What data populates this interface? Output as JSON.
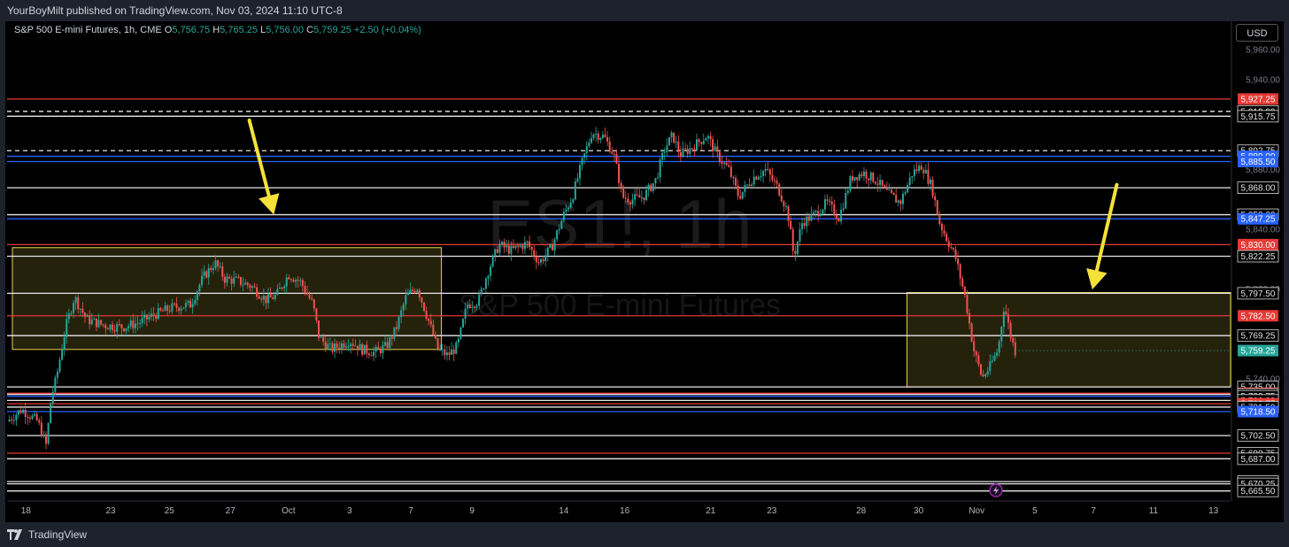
{
  "header": {
    "publish_text": "YourBoyMilt published on TradingView.com, Nov 03, 2024 11:10 UTC-8"
  },
  "legend": {
    "symbol": "S&P 500 E-mini Futures, 1h, CME",
    "open_label": "O",
    "open": "5,756.75",
    "high_label": "H",
    "high": "5,765.25",
    "low_label": "L",
    "low": "5,756.00",
    "close_label": "C",
    "close": "5,759.25",
    "change": "+2.50 (+0.04%)"
  },
  "currency_button": "USD",
  "watermark": {
    "symbol": "ES1!, 1h",
    "name": "S&P 500 E-mini Futures"
  },
  "footer": {
    "brand": "TradingView"
  },
  "colors": {
    "up": "#26a69a",
    "down": "#ef5350",
    "red_line": "#e53935",
    "blue_line": "#2962ff",
    "arrow": "#f5e13a",
    "zone": "#e8d64a"
  },
  "chart_data": {
    "type": "candlestick",
    "title": "S&P 500 E-mini Futures, 1h, CME",
    "y_range": [
      5660,
      5965
    ],
    "x_ticks": [
      {
        "label": "18",
        "pos": 0.0154
      },
      {
        "label": "23",
        "pos": 0.0847
      },
      {
        "label": "25",
        "pos": 0.1326
      },
      {
        "label": "27",
        "pos": 0.1825
      },
      {
        "label": "Oct",
        "pos": 0.23
      },
      {
        "label": "3",
        "pos": 0.28
      },
      {
        "label": "7",
        "pos": 0.33
      },
      {
        "label": "9",
        "pos": 0.38
      },
      {
        "label": "14",
        "pos": 0.455
      },
      {
        "label": "16",
        "pos": 0.5048
      },
      {
        "label": "21",
        "pos": 0.5751
      },
      {
        "label": "23",
        "pos": 0.625
      },
      {
        "label": "28",
        "pos": 0.698
      },
      {
        "label": "30",
        "pos": 0.745
      },
      {
        "label": "Nov",
        "pos": 0.7925
      },
      {
        "label": "5",
        "pos": 0.84
      },
      {
        "label": "7",
        "pos": 0.888
      },
      {
        "label": "11",
        "pos": 0.937
      },
      {
        "label": "13",
        "pos": 0.986
      }
    ],
    "y_scale_labels": [
      {
        "label": "5,960.00",
        "value": 5960
      },
      {
        "label": "5,940.00",
        "value": 5940
      },
      {
        "label": "5,880.00",
        "value": 5880
      },
      {
        "label": "5,840.00",
        "value": 5840
      },
      {
        "label": "5,800.00",
        "value": 5800
      },
      {
        "label": "5,740.00",
        "value": 5740
      }
    ],
    "levels": [
      {
        "price": 5927.25,
        "label": "5,927.25",
        "color": "red",
        "style": "solid",
        "badge": true
      },
      {
        "price": 5919.0,
        "label": "5,919.00",
        "color": "white",
        "style": "dashed"
      },
      {
        "price": 5915.75,
        "label": "5,915.75",
        "color": "white",
        "style": "solid"
      },
      {
        "price": 5892.75,
        "label": "5,892.75",
        "color": "white",
        "style": "dashed"
      },
      {
        "price": 5889.0,
        "label": "5,889.00",
        "color": "blue",
        "style": "solid",
        "badge": true
      },
      {
        "price": 5885.5,
        "label": "5,885.50",
        "color": "blue",
        "style": "solid",
        "badge": true
      },
      {
        "price": 5868.0,
        "label": "5,868.00",
        "color": "white",
        "style": "solid"
      },
      {
        "price": 5850.0,
        "label": "5,850.00",
        "color": "white",
        "style": "solid"
      },
      {
        "price": 5847.25,
        "label": "5,847.25",
        "color": "blue",
        "style": "solid",
        "badge": true
      },
      {
        "price": 5830.0,
        "label": "5,830.00",
        "color": "red",
        "style": "solid",
        "badge": true
      },
      {
        "price": 5822.25,
        "label": "5,822.25",
        "color": "white",
        "style": "solid"
      },
      {
        "price": 5797.5,
        "label": "5,797.50",
        "color": "white",
        "style": "solid"
      },
      {
        "price": 5782.5,
        "label": "5,782.50",
        "color": "red",
        "style": "solid",
        "badge": true
      },
      {
        "price": 5769.25,
        "label": "5,769.25",
        "color": "white",
        "style": "solid"
      },
      {
        "price": 5735.0,
        "label": "5,735.00",
        "color": "white",
        "style": "solid"
      },
      {
        "price": 5730.75,
        "label": "5,730.75",
        "color": "red",
        "style": "solid",
        "badge": true
      },
      {
        "price": 5730.0,
        "label": "5,730.00",
        "color": "white",
        "style": "solid"
      },
      {
        "price": 5728.75,
        "label": "5,728.75",
        "color": "blue",
        "style": "solid"
      },
      {
        "price": 5726.0,
        "label": "5,726.00",
        "color": "white",
        "style": "solid"
      },
      {
        "price": 5723.75,
        "label": "5,723.75",
        "color": "red",
        "style": "solid",
        "badge": true
      },
      {
        "price": 5721.5,
        "label": "5,721.50",
        "color": "white",
        "style": "solid"
      },
      {
        "price": 5718.5,
        "label": "5,718.50",
        "color": "blue",
        "style": "solid",
        "badge": true
      },
      {
        "price": 5702.5,
        "label": "5,702.50",
        "color": "white",
        "style": "solid"
      },
      {
        "price": 5690.75,
        "label": "5,690.75",
        "color": "red",
        "style": "solid"
      },
      {
        "price": 5687.0,
        "label": "5,687.00",
        "color": "white",
        "style": "solid"
      },
      {
        "price": 5671.75,
        "label": "5,671.75",
        "color": "white",
        "style": "solid"
      },
      {
        "price": 5670.25,
        "label": "5,670.25",
        "color": "white",
        "style": "solid"
      },
      {
        "price": 5665.5,
        "label": "5,665.50",
        "color": "white",
        "style": "solid"
      }
    ],
    "current_price": {
      "price": 5759.25,
      "label": "5,759.25"
    },
    "zones": [
      {
        "t_start": 0.0,
        "t_end": 0.355,
        "price_top": 5828,
        "price_bottom": 5760
      },
      {
        "t_start": 0.7355,
        "t_end": 1.0,
        "price_top": 5798,
        "price_bottom": 5735
      }
    ],
    "arrows": [
      {
        "t_from": 0.198,
        "price_from": 5913,
        "t_to": 0.218,
        "price_to": 5850
      },
      {
        "t_from": 0.907,
        "price_from": 5870,
        "t_to": 0.887,
        "price_to": 5800
      }
    ],
    "path_keypoints": [
      [
        0.0,
        5712
      ],
      [
        0.012,
        5720
      ],
      [
        0.025,
        5712
      ],
      [
        0.032,
        5696
      ],
      [
        0.036,
        5728
      ],
      [
        0.04,
        5740
      ],
      [
        0.048,
        5775
      ],
      [
        0.055,
        5795
      ],
      [
        0.065,
        5780
      ],
      [
        0.08,
        5776
      ],
      [
        0.095,
        5775
      ],
      [
        0.108,
        5778
      ],
      [
        0.12,
        5783
      ],
      [
        0.135,
        5788
      ],
      [
        0.15,
        5790
      ],
      [
        0.16,
        5808
      ],
      [
        0.17,
        5818
      ],
      [
        0.178,
        5807
      ],
      [
        0.188,
        5806
      ],
      [
        0.2,
        5802
      ],
      [
        0.212,
        5793
      ],
      [
        0.22,
        5796
      ],
      [
        0.23,
        5810
      ],
      [
        0.24,
        5805
      ],
      [
        0.25,
        5790
      ],
      [
        0.255,
        5768
      ],
      [
        0.265,
        5760
      ],
      [
        0.28,
        5766
      ],
      [
        0.29,
        5760
      ],
      [
        0.3,
        5758
      ],
      [
        0.31,
        5762
      ],
      [
        0.318,
        5774
      ],
      [
        0.326,
        5795
      ],
      [
        0.335,
        5802
      ],
      [
        0.345,
        5778
      ],
      [
        0.352,
        5760
      ],
      [
        0.36,
        5756
      ],
      [
        0.368,
        5762
      ],
      [
        0.376,
        5790
      ],
      [
        0.385,
        5792
      ],
      [
        0.393,
        5812
      ],
      [
        0.402,
        5830
      ],
      [
        0.412,
        5826
      ],
      [
        0.425,
        5831
      ],
      [
        0.435,
        5818
      ],
      [
        0.445,
        5828
      ],
      [
        0.455,
        5850
      ],
      [
        0.462,
        5862
      ],
      [
        0.47,
        5885
      ],
      [
        0.478,
        5905
      ],
      [
        0.488,
        5902
      ],
      [
        0.496,
        5890
      ],
      [
        0.503,
        5862
      ],
      [
        0.51,
        5860
      ],
      [
        0.52,
        5862
      ],
      [
        0.53,
        5873
      ],
      [
        0.538,
        5895
      ],
      [
        0.544,
        5903
      ],
      [
        0.55,
        5890
      ],
      [
        0.56,
        5895
      ],
      [
        0.572,
        5903
      ],
      [
        0.58,
        5890
      ],
      [
        0.59,
        5880
      ],
      [
        0.598,
        5862
      ],
      [
        0.61,
        5875
      ],
      [
        0.62,
        5880
      ],
      [
        0.63,
        5868
      ],
      [
        0.638,
        5852
      ],
      [
        0.643,
        5822
      ],
      [
        0.65,
        5845
      ],
      [
        0.66,
        5850
      ],
      [
        0.67,
        5858
      ],
      [
        0.68,
        5848
      ],
      [
        0.69,
        5875
      ],
      [
        0.7,
        5878
      ],
      [
        0.71,
        5873
      ],
      [
        0.72,
        5864
      ],
      [
        0.73,
        5858
      ],
      [
        0.74,
        5878
      ],
      [
        0.748,
        5883
      ],
      [
        0.756,
        5868
      ],
      [
        0.762,
        5845
      ],
      [
        0.768,
        5834
      ],
      [
        0.775,
        5822
      ],
      [
        0.783,
        5795
      ],
      [
        0.79,
        5760
      ],
      [
        0.797,
        5741
      ],
      [
        0.803,
        5748
      ],
      [
        0.81,
        5760
      ],
      [
        0.815,
        5790
      ],
      [
        0.82,
        5770
      ],
      [
        0.824,
        5759
      ]
    ]
  }
}
